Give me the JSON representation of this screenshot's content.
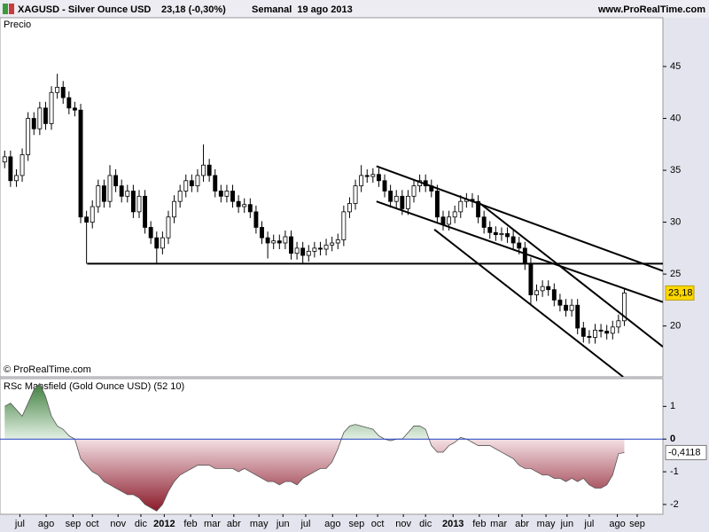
{
  "header": {
    "symbol": "XAGUSD - Silver Ounce USD",
    "quote": "23,18 (-0,30%)",
    "period": "Semanal  19 ago 2013",
    "site": "www.ProRealTime.com"
  },
  "chart_data": [
    {
      "type": "candlestick",
      "title": "Precio",
      "note": "© ProRealTime.com",
      "xlim": [
        -0.8,
        112.6
      ],
      "ylim": [
        15.1,
        49.7
      ],
      "yticks": [
        20,
        25,
        30,
        35,
        40,
        45
      ],
      "up_color": "#ffffff",
      "down_color": "#000000",
      "open": [
        35.8,
        36.3,
        34.0,
        34.5,
        36.5,
        40.0,
        39.0,
        41.0,
        39.5,
        42.5,
        43.0,
        42.0,
        41.0,
        40.8,
        30.5,
        30.0,
        31.5,
        33.5,
        32.0,
        34.5,
        33.5,
        32.5,
        33.0,
        31.0,
        32.5,
        29.5,
        28.5,
        27.5,
        28.5,
        30.5,
        32.0,
        33.0,
        34.0,
        33.5,
        34.5,
        35.5,
        34.5,
        33.0,
        32.5,
        33.0,
        32.0,
        31.5,
        31.7,
        31.0,
        29.5,
        28.5,
        28.0,
        28.2,
        28.0,
        28.6,
        27.0,
        27.5,
        26.8,
        27.2,
        27.5,
        27.4,
        27.8,
        28.0,
        28.3,
        31.0,
        31.8,
        33.5,
        34.5,
        34.4,
        34.6,
        34.0,
        33.0,
        32.0,
        32.5,
        31.3,
        32.5,
        33.5,
        34.0,
        33.5,
        33.0,
        30.5,
        29.8,
        30.5,
        31.0,
        32.0,
        32.2,
        32.0,
        30.5,
        29.5,
        29.0,
        28.8,
        28.9,
        28.6,
        28.0,
        27.5,
        26.0,
        23.0,
        23.4,
        23.8,
        23.5,
        22.5,
        22.0,
        21.5,
        22.0,
        19.8,
        19.0,
        18.9,
        19.6,
        19.5,
        19.3,
        19.9,
        20.5
      ],
      "high": [
        36.9,
        36.9,
        35.1,
        37.1,
        40.6,
        40.6,
        41.6,
        41.6,
        43.1,
        44.3,
        43.6,
        42.6,
        41.6,
        41.4,
        31.1,
        32.1,
        34.1,
        34.1,
        35.5,
        35.1,
        34.1,
        33.6,
        33.6,
        33.1,
        33.1,
        30.1,
        29.1,
        29.1,
        31.1,
        32.6,
        33.6,
        34.6,
        34.6,
        35.1,
        37.5,
        36.1,
        35.1,
        33.6,
        33.6,
        33.6,
        32.6,
        32.3,
        32.3,
        31.6,
        30.1,
        29.1,
        28.8,
        28.8,
        29.2,
        29.2,
        28.1,
        28.1,
        27.8,
        28.1,
        28.1,
        28.4,
        28.6,
        28.9,
        31.6,
        32.4,
        34.1,
        35.5,
        35.1,
        35.2,
        35.2,
        34.6,
        33.6,
        33.1,
        33.1,
        33.1,
        34.1,
        34.6,
        34.6,
        34.1,
        33.6,
        31.1,
        31.1,
        31.6,
        32.6,
        32.8,
        32.8,
        32.6,
        31.1,
        30.1,
        29.6,
        29.5,
        29.5,
        29.2,
        28.6,
        28.1,
        26.6,
        24.0,
        24.4,
        24.4,
        24.1,
        23.1,
        22.6,
        22.6,
        22.6,
        20.4,
        19.6,
        20.2,
        20.2,
        20.1,
        20.5,
        21.1,
        23.6
      ],
      "low": [
        35.2,
        33.4,
        33.4,
        33.9,
        35.9,
        38.4,
        38.4,
        38.9,
        38.9,
        41.9,
        41.4,
        40.4,
        40.2,
        29.9,
        26.0,
        29.4,
        30.9,
        31.4,
        31.4,
        32.9,
        31.9,
        31.9,
        30.4,
        30.4,
        28.9,
        27.9,
        26.0,
        26.9,
        27.9,
        29.9,
        31.4,
        32.4,
        32.9,
        32.9,
        33.9,
        33.9,
        32.4,
        31.9,
        31.9,
        31.4,
        30.9,
        30.9,
        30.4,
        28.9,
        27.9,
        26.5,
        27.4,
        27.4,
        27.4,
        26.4,
        26.4,
        26.0,
        26.2,
        26.6,
        26.8,
        26.8,
        27.2,
        27.4,
        27.7,
        30.4,
        31.2,
        32.9,
        33.8,
        33.8,
        33.4,
        32.4,
        31.4,
        31.4,
        30.7,
        30.7,
        31.9,
        32.9,
        32.9,
        32.4,
        29.9,
        29.2,
        29.2,
        29.9,
        30.4,
        31.4,
        31.4,
        29.9,
        28.9,
        28.4,
        28.2,
        28.2,
        28.0,
        27.4,
        26.9,
        25.4,
        22.0,
        22.4,
        22.8,
        22.9,
        21.9,
        21.4,
        20.9,
        20.9,
        19.2,
        18.4,
        18.3,
        18.3,
        18.9,
        18.7,
        18.7,
        19.3,
        20.0
      ],
      "close": [
        36.3,
        34.0,
        34.5,
        36.5,
        40.0,
        39.0,
        41.0,
        39.5,
        42.5,
        43.0,
        42.0,
        41.0,
        40.8,
        30.5,
        30.0,
        31.5,
        33.5,
        32.0,
        34.5,
        33.5,
        32.5,
        33.0,
        31.0,
        32.5,
        29.5,
        28.5,
        27.5,
        28.5,
        30.5,
        32.0,
        33.0,
        34.0,
        33.5,
        34.5,
        35.5,
        34.5,
        33.0,
        32.5,
        33.0,
        32.0,
        31.5,
        31.7,
        31.0,
        29.5,
        28.5,
        28.0,
        28.2,
        28.0,
        28.6,
        27.0,
        27.5,
        26.8,
        27.2,
        27.5,
        27.4,
        27.8,
        28.0,
        28.3,
        31.0,
        31.8,
        33.5,
        34.5,
        34.4,
        34.6,
        34.0,
        33.0,
        32.0,
        32.5,
        31.3,
        32.5,
        33.5,
        34.0,
        33.5,
        33.0,
        30.5,
        29.8,
        30.5,
        31.0,
        32.0,
        32.2,
        32.0,
        30.5,
        29.5,
        29.0,
        28.8,
        28.9,
        28.6,
        28.0,
        27.5,
        26.0,
        23.0,
        23.4,
        23.8,
        23.5,
        22.5,
        22.0,
        21.5,
        22.0,
        19.8,
        19.0,
        18.9,
        19.6,
        19.5,
        19.3,
        19.9,
        20.5,
        23.18
      ],
      "last": {
        "value": 23.18,
        "label": "23,18"
      },
      "lines": [
        {
          "x": [
            14.1,
            112.6
          ],
          "y": [
            26.0,
            26.0
          ]
        },
        {
          "x": [
            63.6,
            112.6
          ],
          "y": [
            35.4,
            25.3
          ]
        },
        {
          "x": [
            63.6,
            112.6
          ],
          "y": [
            32.0,
            22.3
          ]
        },
        {
          "x": [
            81.1,
            112.6
          ],
          "y": [
            31.9,
            18.0
          ]
        },
        {
          "x": [
            73.5,
            105.8
          ],
          "y": [
            29.3,
            15.1
          ]
        }
      ]
    },
    {
      "type": "area",
      "title": "RSc Mansfield (Gold Ounce USD) (52 10)",
      "xlim": [
        -0.8,
        112.6
      ],
      "ylim": [
        -2.3,
        1.85
      ],
      "yticks": [
        1,
        0,
        -1,
        -2
      ],
      "pos_color": "#3f7f3f",
      "neg_color": "#8b1a2a",
      "zero_color": "#1f3fbf",
      "values": [
        1.0,
        1.1,
        0.9,
        0.7,
        1.1,
        1.5,
        1.7,
        1.3,
        0.7,
        0.4,
        0.3,
        0.1,
        0.0,
        -0.6,
        -0.8,
        -1.0,
        -1.1,
        -1.3,
        -1.4,
        -1.5,
        -1.6,
        -1.7,
        -1.7,
        -1.8,
        -2.0,
        -2.1,
        -2.2,
        -2.0,
        -1.6,
        -1.3,
        -1.1,
        -1.0,
        -0.9,
        -0.8,
        -0.8,
        -0.8,
        -0.9,
        -0.9,
        -0.9,
        -0.9,
        -1.0,
        -0.9,
        -1.0,
        -1.1,
        -1.2,
        -1.3,
        -1.3,
        -1.4,
        -1.3,
        -1.3,
        -1.4,
        -1.2,
        -1.1,
        -1.0,
        -0.9,
        -0.9,
        -0.7,
        -0.3,
        0.2,
        0.4,
        0.45,
        0.4,
        0.35,
        0.3,
        0.1,
        0.0,
        -0.05,
        0.0,
        0.0,
        0.2,
        0.4,
        0.4,
        0.3,
        -0.2,
        -0.4,
        -0.4,
        -0.2,
        -0.1,
        0.05,
        0.0,
        -0.1,
        -0.2,
        -0.2,
        -0.2,
        -0.3,
        -0.4,
        -0.5,
        -0.6,
        -0.8,
        -0.9,
        -0.9,
        -1.0,
        -1.1,
        -1.1,
        -1.2,
        -1.2,
        -1.3,
        -1.2,
        -1.3,
        -1.2,
        -1.4,
        -1.5,
        -1.5,
        -1.4,
        -1.1,
        -0.45,
        -0.4118
      ],
      "last": {
        "value": -0.4118,
        "label": "-0,4118"
      },
      "xticks": [
        {
          "value": 2.6,
          "label": "jul"
        },
        {
          "value": 7.1,
          "label": "ago"
        },
        {
          "value": 11.7,
          "label": "sep"
        },
        {
          "value": 15.0,
          "label": "oct"
        },
        {
          "value": 19.4,
          "label": "nov"
        },
        {
          "value": 23.3,
          "label": "dic"
        },
        {
          "value": 27.3,
          "label": "2012"
        },
        {
          "value": 31.8,
          "label": "feb"
        },
        {
          "value": 35.5,
          "label": "mar"
        },
        {
          "value": 39.2,
          "label": "abr"
        },
        {
          "value": 43.5,
          "label": "may"
        },
        {
          "value": 47.6,
          "label": "jun"
        },
        {
          "value": 51.5,
          "label": "jul"
        },
        {
          "value": 56.1,
          "label": "ago"
        },
        {
          "value": 60.2,
          "label": "sep"
        },
        {
          "value": 63.8,
          "label": "oct"
        },
        {
          "value": 68.2,
          "label": "nov"
        },
        {
          "value": 72.0,
          "label": "dic"
        },
        {
          "value": 76.7,
          "label": "2013"
        },
        {
          "value": 81.2,
          "label": "feb"
        },
        {
          "value": 84.5,
          "label": "mar"
        },
        {
          "value": 88.5,
          "label": "abr"
        },
        {
          "value": 92.6,
          "label": "may"
        },
        {
          "value": 96.2,
          "label": "jun"
        },
        {
          "value": 100.0,
          "label": "jul"
        },
        {
          "value": 104.8,
          "label": "ago"
        },
        {
          "value": 108.2,
          "label": "sep"
        }
      ]
    }
  ]
}
